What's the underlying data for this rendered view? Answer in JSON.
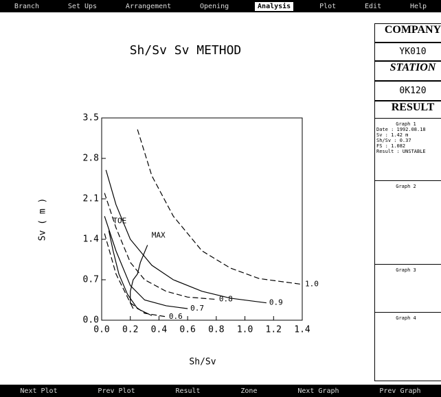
{
  "menu": {
    "items": [
      "Branch",
      "Set Ups",
      "Arrangement",
      "Opening",
      "Analysis",
      "Plot",
      "Edit",
      "Help"
    ],
    "active": 4
  },
  "sidebar": {
    "company_label": "COMPANY",
    "company": "YK010",
    "station_label": "STATION",
    "station": "0K120",
    "result_label": "RESULT",
    "graphs": [
      {
        "title": "Graph 1",
        "lines": [
          "Date : 1992.08.18",
          "Sv : 1.42 m",
          "Sh/Sv : 0.37",
          "FS : 1.082",
          "Result : UNSTABLE"
        ]
      },
      {
        "title": "Graph 2",
        "lines": []
      },
      {
        "title": "Graph 3",
        "lines": []
      },
      {
        "title": "Graph 4",
        "lines": []
      }
    ]
  },
  "footer": {
    "items": [
      "Next Plot",
      "Prev Plot",
      "Result",
      "Zone",
      "Next Graph",
      "Prev Graph"
    ]
  },
  "chart_data": {
    "type": "line",
    "title": "Sh/Sv   Sv METHOD",
    "x_label": "Sh/Sv",
    "y_label": "Sv ( m )",
    "xlim": [
      0,
      1.4
    ],
    "ylim": [
      0,
      3.5
    ],
    "xticks": [
      {
        "value": 0,
        "label": "0.0"
      },
      0.2,
      0.4,
      0.6,
      0.8,
      {
        "value": 1,
        "label": "1.0"
      },
      1.2,
      1.4
    ],
    "yticks": [
      {
        "value": 0,
        "label": "0.0"
      },
      0.7,
      1.4,
      2.1,
      2.8,
      3.5
    ],
    "series": [
      {
        "name": "1.0",
        "color": "#000000",
        "dashed": true,
        "x": [
          0.25,
          0.35,
          0.5,
          0.7,
          0.9,
          1.1,
          1.4
        ],
        "y": [
          3.3,
          2.5,
          1.8,
          1.2,
          0.9,
          0.72,
          0.62
        ]
      },
      {
        "name": "0.9",
        "color": "#000000",
        "dashed": false,
        "x": [
          0.03,
          0.1,
          0.2,
          0.35,
          0.5,
          0.7,
          0.9,
          1.15
        ],
        "y": [
          2.6,
          2.0,
          1.4,
          0.95,
          0.7,
          0.5,
          0.38,
          0.3
        ]
      },
      {
        "name": "0.8",
        "color": "#000000",
        "dashed": true,
        "x": [
          0.02,
          0.1,
          0.2,
          0.3,
          0.45,
          0.6,
          0.8
        ],
        "y": [
          2.2,
          1.6,
          1.0,
          0.7,
          0.5,
          0.4,
          0.36
        ]
      },
      {
        "name": "0.7",
        "color": "#000000",
        "dashed": false,
        "x": [
          0.02,
          0.1,
          0.2,
          0.3,
          0.45,
          0.6
        ],
        "y": [
          1.8,
          1.2,
          0.6,
          0.35,
          0.25,
          0.2
        ]
      },
      {
        "name": "0.6",
        "color": "#000000",
        "dashed": true,
        "x": [
          0.02,
          0.1,
          0.2,
          0.3,
          0.45
        ],
        "y": [
          1.5,
          0.8,
          0.3,
          0.12,
          0.06
        ]
      },
      {
        "name": "TOE",
        "color": "#000000",
        "dashed": false,
        "x": [
          0.05,
          0.08,
          0.12,
          0.18,
          0.25,
          0.35
        ],
        "y": [
          1.55,
          1.2,
          0.8,
          0.45,
          0.2,
          0.08
        ]
      },
      {
        "name": "MAX",
        "color": "#000000",
        "dashed": false,
        "x": [
          0.32,
          0.27,
          0.25,
          0.22,
          0.2,
          0.2,
          0.22
        ],
        "y": [
          1.3,
          1.0,
          0.8,
          0.7,
          0.5,
          0.3,
          0.2
        ]
      }
    ]
  }
}
